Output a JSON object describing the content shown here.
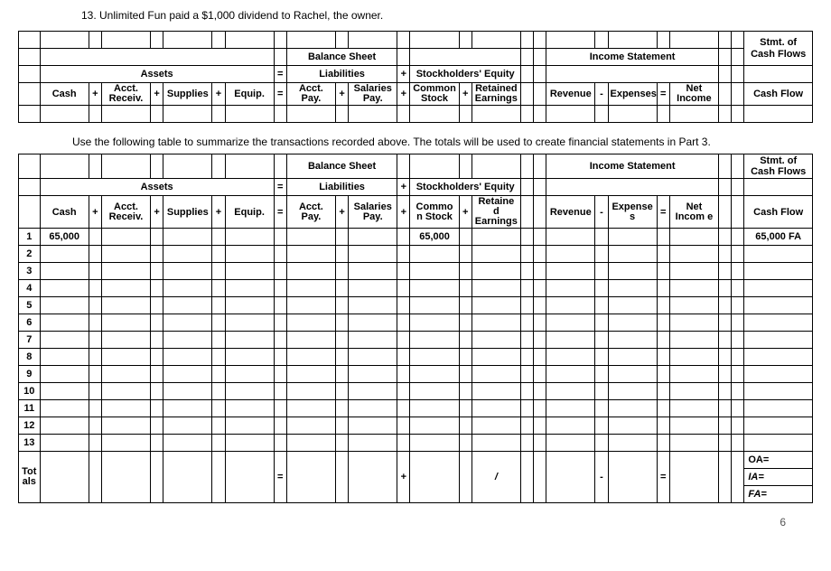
{
  "question": "13.  Unlimited Fun paid a $1,000 dividend to Rachel, the owner.",
  "instruction": "Use the following table to summarize the transactions recorded above.  The totals will be used to create financial statements in Part 3.",
  "headers": {
    "balanceSheet": "Balance Sheet",
    "incomeStatement": "Income Statement",
    "stmtCashFlows": "Stmt. of Cash Flows",
    "assets": "Assets",
    "liabilities": "Liabilities",
    "stockholdersEquity": "Stockholders' Equity",
    "cash": "Cash",
    "acctReceiv": "Acct. Receiv.",
    "supplies": "Supplies",
    "equip": "Equip.",
    "acctPay": "Acct. Pay.",
    "salariesPay": "Salaries Pay.",
    "commonStock": "Common Stock",
    "retainedEarnings": "Retained Earnings",
    "revenue": "Revenue",
    "expenses": "Expenses",
    "netIncome": "Net Income",
    "cashFlow": "Cash Flow",
    "commo_n_stock": "Commo n Stock",
    "retaine_d_earnings": "Retaine d Earnings",
    "expense_s": "Expense s",
    "net_incom_e": "Net Incom e",
    "totals": "Tot als"
  },
  "row1": {
    "cash": "65,000",
    "common": "65,000",
    "flow": "65,000 FA"
  },
  "rowNums": [
    "1",
    "2",
    "3",
    "4",
    "5",
    "6",
    "7",
    "8",
    "9",
    "10",
    "11",
    "12",
    "13"
  ],
  "totalsSyms": {
    "eq1": "=",
    "plus": "+",
    "slash": "/",
    "dash": "-",
    "eq2": "="
  },
  "flowLabels": {
    "oa": "OA=",
    "ia": "IA=",
    "fa": "FA="
  },
  "pageNum": "6"
}
